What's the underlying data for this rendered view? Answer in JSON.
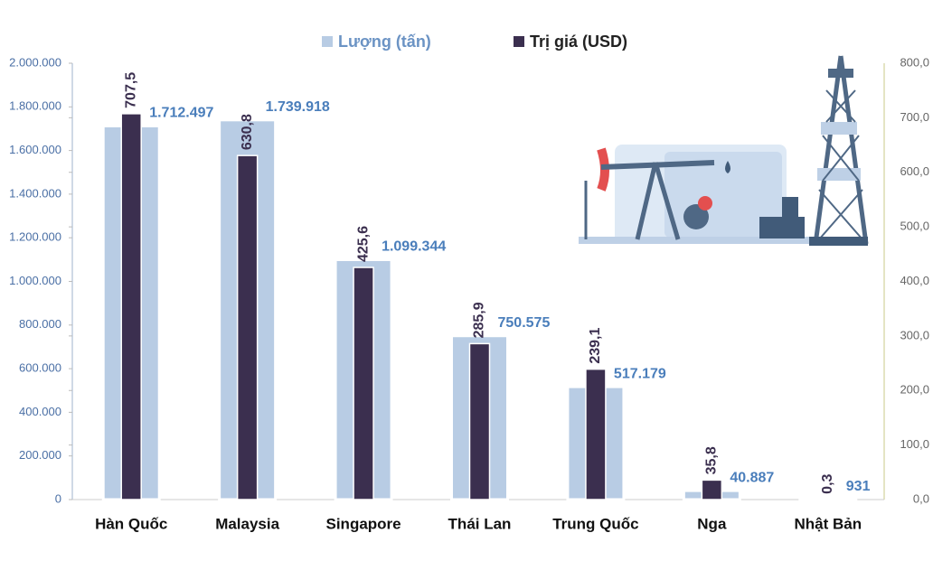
{
  "chart_data": {
    "type": "bar",
    "categories": [
      "Hàn Quốc",
      "Malaysia",
      "Singapore",
      "Thái Lan",
      "Trung Quốc",
      "Nga",
      "Nhật Bản"
    ],
    "series": [
      {
        "name": "Lượng (tấn)",
        "color": "#b8cce4",
        "values": [
          1712497,
          1739918,
          1099344,
          750575,
          517179,
          40887,
          931
        ],
        "value_labels": [
          "1.712.497",
          "1.739.918",
          "1.099.344",
          "750.575",
          "517.179",
          "40.887",
          "931"
        ]
      },
      {
        "name": "Trị giá (USD)",
        "color": "#3b2f4f",
        "axis": "y2",
        "values": [
          707.5,
          630.8,
          425.6,
          285.9,
          239.1,
          35.8,
          0.3
        ],
        "value_labels": [
          "707,5",
          "630,8",
          "425,6",
          "285,9",
          "239,1",
          "35,8",
          "0,3"
        ]
      }
    ],
    "ylim": [
      0,
      2000000
    ],
    "yticks": [
      0,
      {
        "value": 200000,
        "label": "200.000"
      },
      {
        "value": 400000,
        "label": "400.000"
      },
      {
        "value": 600000,
        "label": "600.000"
      },
      {
        "value": 800000,
        "label": "800.000"
      },
      {
        "value": 1000000,
        "label": "1.000.000"
      },
      {
        "value": 1200000,
        "label": "1.200.000"
      },
      {
        "value": 1400000,
        "label": "1.400.000"
      },
      {
        "value": 1600000,
        "label": "1.600.000"
      },
      {
        "value": 1800000,
        "label": "1.800.000"
      },
      {
        "value": 2000000,
        "label": "2.000.000"
      }
    ],
    "y2lim": [
      0,
      800
    ],
    "y2ticks": [
      {
        "value": 0,
        "label": "0,0"
      },
      {
        "value": 100,
        "label": "100,0"
      },
      {
        "value": 200,
        "label": "200,0"
      },
      {
        "value": 300,
        "label": "300,0"
      },
      {
        "value": 400,
        "label": "400,0"
      },
      {
        "value": 500,
        "label": "500,0"
      },
      {
        "value": 600,
        "label": "600,0"
      },
      {
        "value": 700,
        "label": "700,0"
      },
      {
        "value": 800,
        "label": "800,0"
      }
    ],
    "legend": "top"
  }
}
